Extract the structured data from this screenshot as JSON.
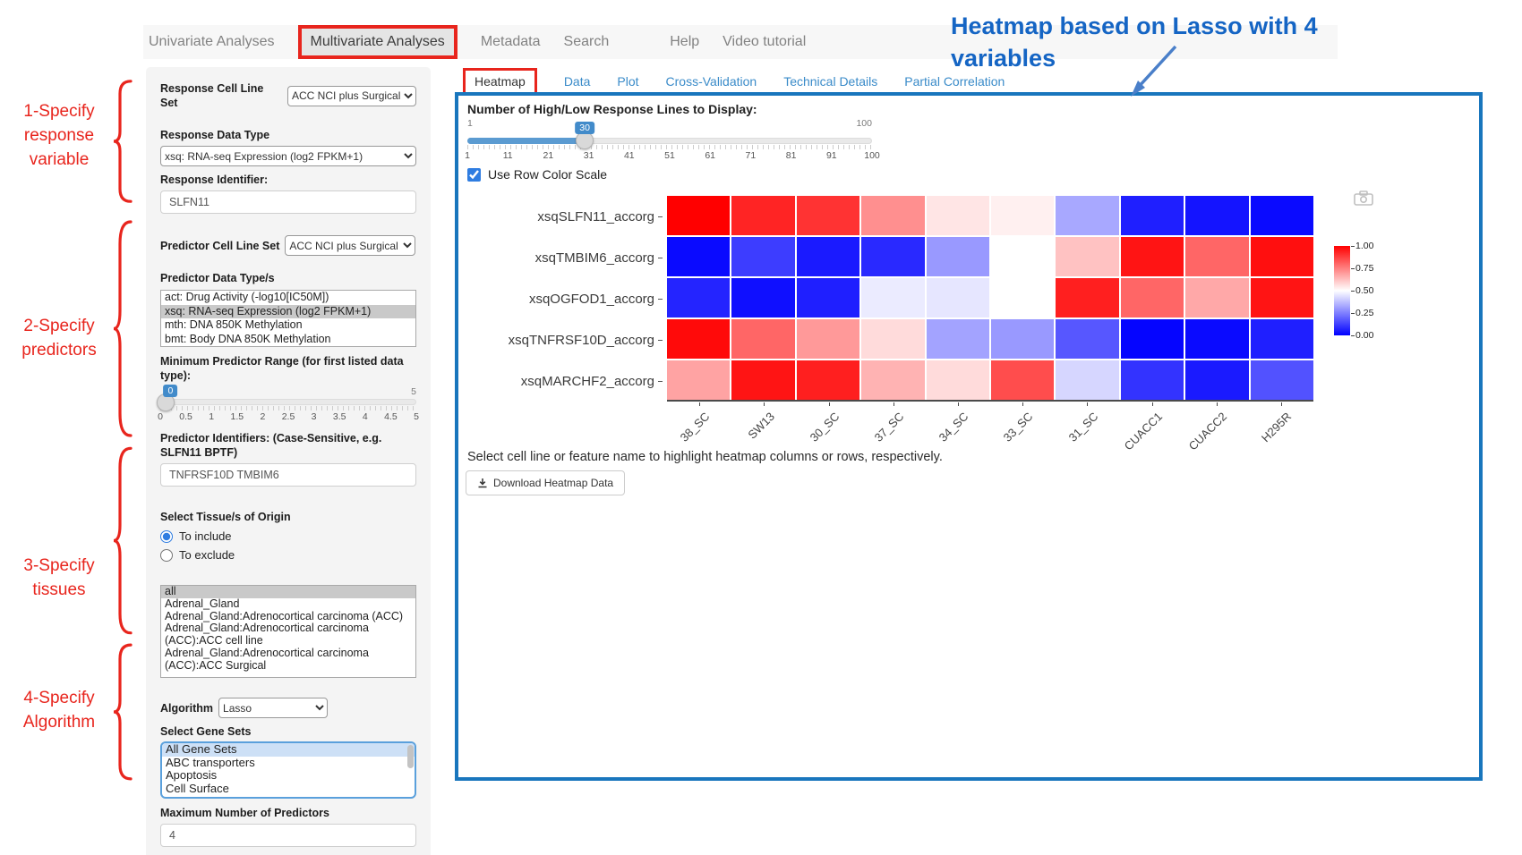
{
  "nav": {
    "items": [
      {
        "label": "Univariate Analyses"
      },
      {
        "label": "Multivariate Analyses",
        "active": true,
        "red_box": true
      },
      {
        "label": "Metadata"
      },
      {
        "label": "Search"
      },
      {
        "label": "Help",
        "gap_before": true
      },
      {
        "label": "Video tutorial"
      }
    ]
  },
  "annotations": {
    "heading": "Heatmap based on Lasso with 4 variables",
    "steps": [
      {
        "lines": [
          "1-Specify",
          "response",
          "variable"
        ]
      },
      {
        "lines": [
          "2-Specify",
          "predictors"
        ]
      },
      {
        "lines": [
          "3-Specify",
          "tissues"
        ]
      },
      {
        "lines": [
          "4-Specify",
          "Algorithm"
        ]
      }
    ]
  },
  "sidebar": {
    "response_cell_line_set": {
      "label": "Response Cell Line Set",
      "value": "ACC NCI plus Surgical"
    },
    "response_data_type": {
      "label": "Response Data Type",
      "value": "xsq: RNA-seq Expression (log2 FPKM+1)"
    },
    "response_identifier": {
      "label": "Response Identifier:",
      "value": "SLFN11"
    },
    "predictor_cell_line_set": {
      "label": "Predictor Cell Line Set",
      "value": "ACC NCI plus Surgical"
    },
    "predictor_data_types": {
      "label": "Predictor Data Type/s",
      "selected_index": 1,
      "options": [
        "act: Drug Activity (-log10[IC50M])",
        "xsq: RNA-seq Expression (log2 FPKM+1)",
        "mth: DNA 850K Methylation",
        "bmt: Body DNA 850K Methylation"
      ]
    },
    "min_predictor_range": {
      "label": "Minimum Predictor Range (for first listed data type):",
      "value": "0",
      "max_label": "5",
      "percent": 0,
      "ticks": [
        "0",
        "0.5",
        "1",
        "1.5",
        "2",
        "2.5",
        "3",
        "3.5",
        "4",
        "4.5",
        "5"
      ]
    },
    "predictor_identifiers": {
      "label": "Predictor Identifiers: (Case-Sensitive, e.g. SLFN11 BPTF)",
      "value": "TNFRSF10D TMBIM6"
    },
    "tissue_origin": {
      "label": "Select Tissue/s of Origin",
      "radios": [
        {
          "label": "To include",
          "selected": true
        },
        {
          "label": "To exclude",
          "selected": false
        }
      ],
      "selected_index": 0,
      "options": [
        "all",
        "Adrenal_Gland",
        "Adrenal_Gland:Adrenocortical carcinoma (ACC)",
        "Adrenal_Gland:Adrenocortical carcinoma (ACC):ACC cell line",
        "Adrenal_Gland:Adrenocortical carcinoma (ACC):ACC Surgical"
      ]
    },
    "algorithm": {
      "label": "Algorithm",
      "value": "Lasso"
    },
    "gene_sets": {
      "label": "Select Gene Sets",
      "selected_index": 0,
      "options": [
        "All Gene Sets",
        "ABC transporters",
        "Apoptosis",
        "Cell Surface"
      ]
    },
    "max_predictors": {
      "label": "Maximum Number of Predictors",
      "value": "4"
    }
  },
  "main": {
    "tabs": [
      {
        "label": "Heatmap",
        "active": true,
        "red_box": true
      },
      {
        "label": "Data"
      },
      {
        "label": "Plot"
      },
      {
        "label": "Cross-Validation"
      },
      {
        "label": "Technical Details"
      },
      {
        "label": "Partial Correlation"
      }
    ],
    "lines_slider": {
      "label": "Number of High/Low Response Lines to Display:",
      "value": "30",
      "min_label": "1",
      "max_label": "100",
      "percent": 29,
      "ticks": [
        "1",
        "11",
        "21",
        "31",
        "41",
        "51",
        "61",
        "71",
        "81",
        "91",
        "100"
      ]
    },
    "row_color_checkbox": {
      "label": "Use Row Color Scale",
      "checked": true
    },
    "hint": "Select cell line or feature name to highlight heatmap columns or rows, respectively.",
    "download_button_label": "Download Heatmap Data"
  },
  "chart_data": {
    "type": "heatmap",
    "rows": [
      "xsqSLFN11_accorg",
      "xsqTMBIM6_accorg",
      "xsqOGFOD1_accorg",
      "xsqTNFRSF10D_accorg",
      "xsqMARCHF2_accorg"
    ],
    "columns": [
      "38_SC",
      "SW13",
      "30_SC",
      "37_SC",
      "34_SC",
      "33_SC",
      "31_SC",
      "CUACC1",
      "CUACC2",
      "H295R"
    ],
    "values": [
      [
        1.0,
        0.93,
        0.9,
        0.72,
        0.55,
        0.53,
        0.33,
        0.06,
        0.04,
        0.02
      ],
      [
        0.02,
        0.12,
        0.05,
        0.08,
        0.3,
        0.5,
        0.62,
        0.96,
        0.8,
        0.97
      ],
      [
        0.07,
        0.03,
        0.06,
        0.46,
        0.45,
        0.5,
        0.94,
        0.8,
        0.67,
        0.96
      ],
      [
        0.98,
        0.8,
        0.7,
        0.57,
        0.32,
        0.3,
        0.17,
        0.01,
        0.02,
        0.06
      ],
      [
        0.68,
        0.96,
        0.94,
        0.65,
        0.57,
        0.85,
        0.42,
        0.1,
        0.05,
        0.16
      ]
    ],
    "colorscale": {
      "type": "blue-white-red",
      "min": 0,
      "max": 1,
      "legend_ticks": [
        "1.00",
        "0.75",
        "0.50",
        "0.25",
        "0.00"
      ]
    },
    "legend_position": "right"
  }
}
